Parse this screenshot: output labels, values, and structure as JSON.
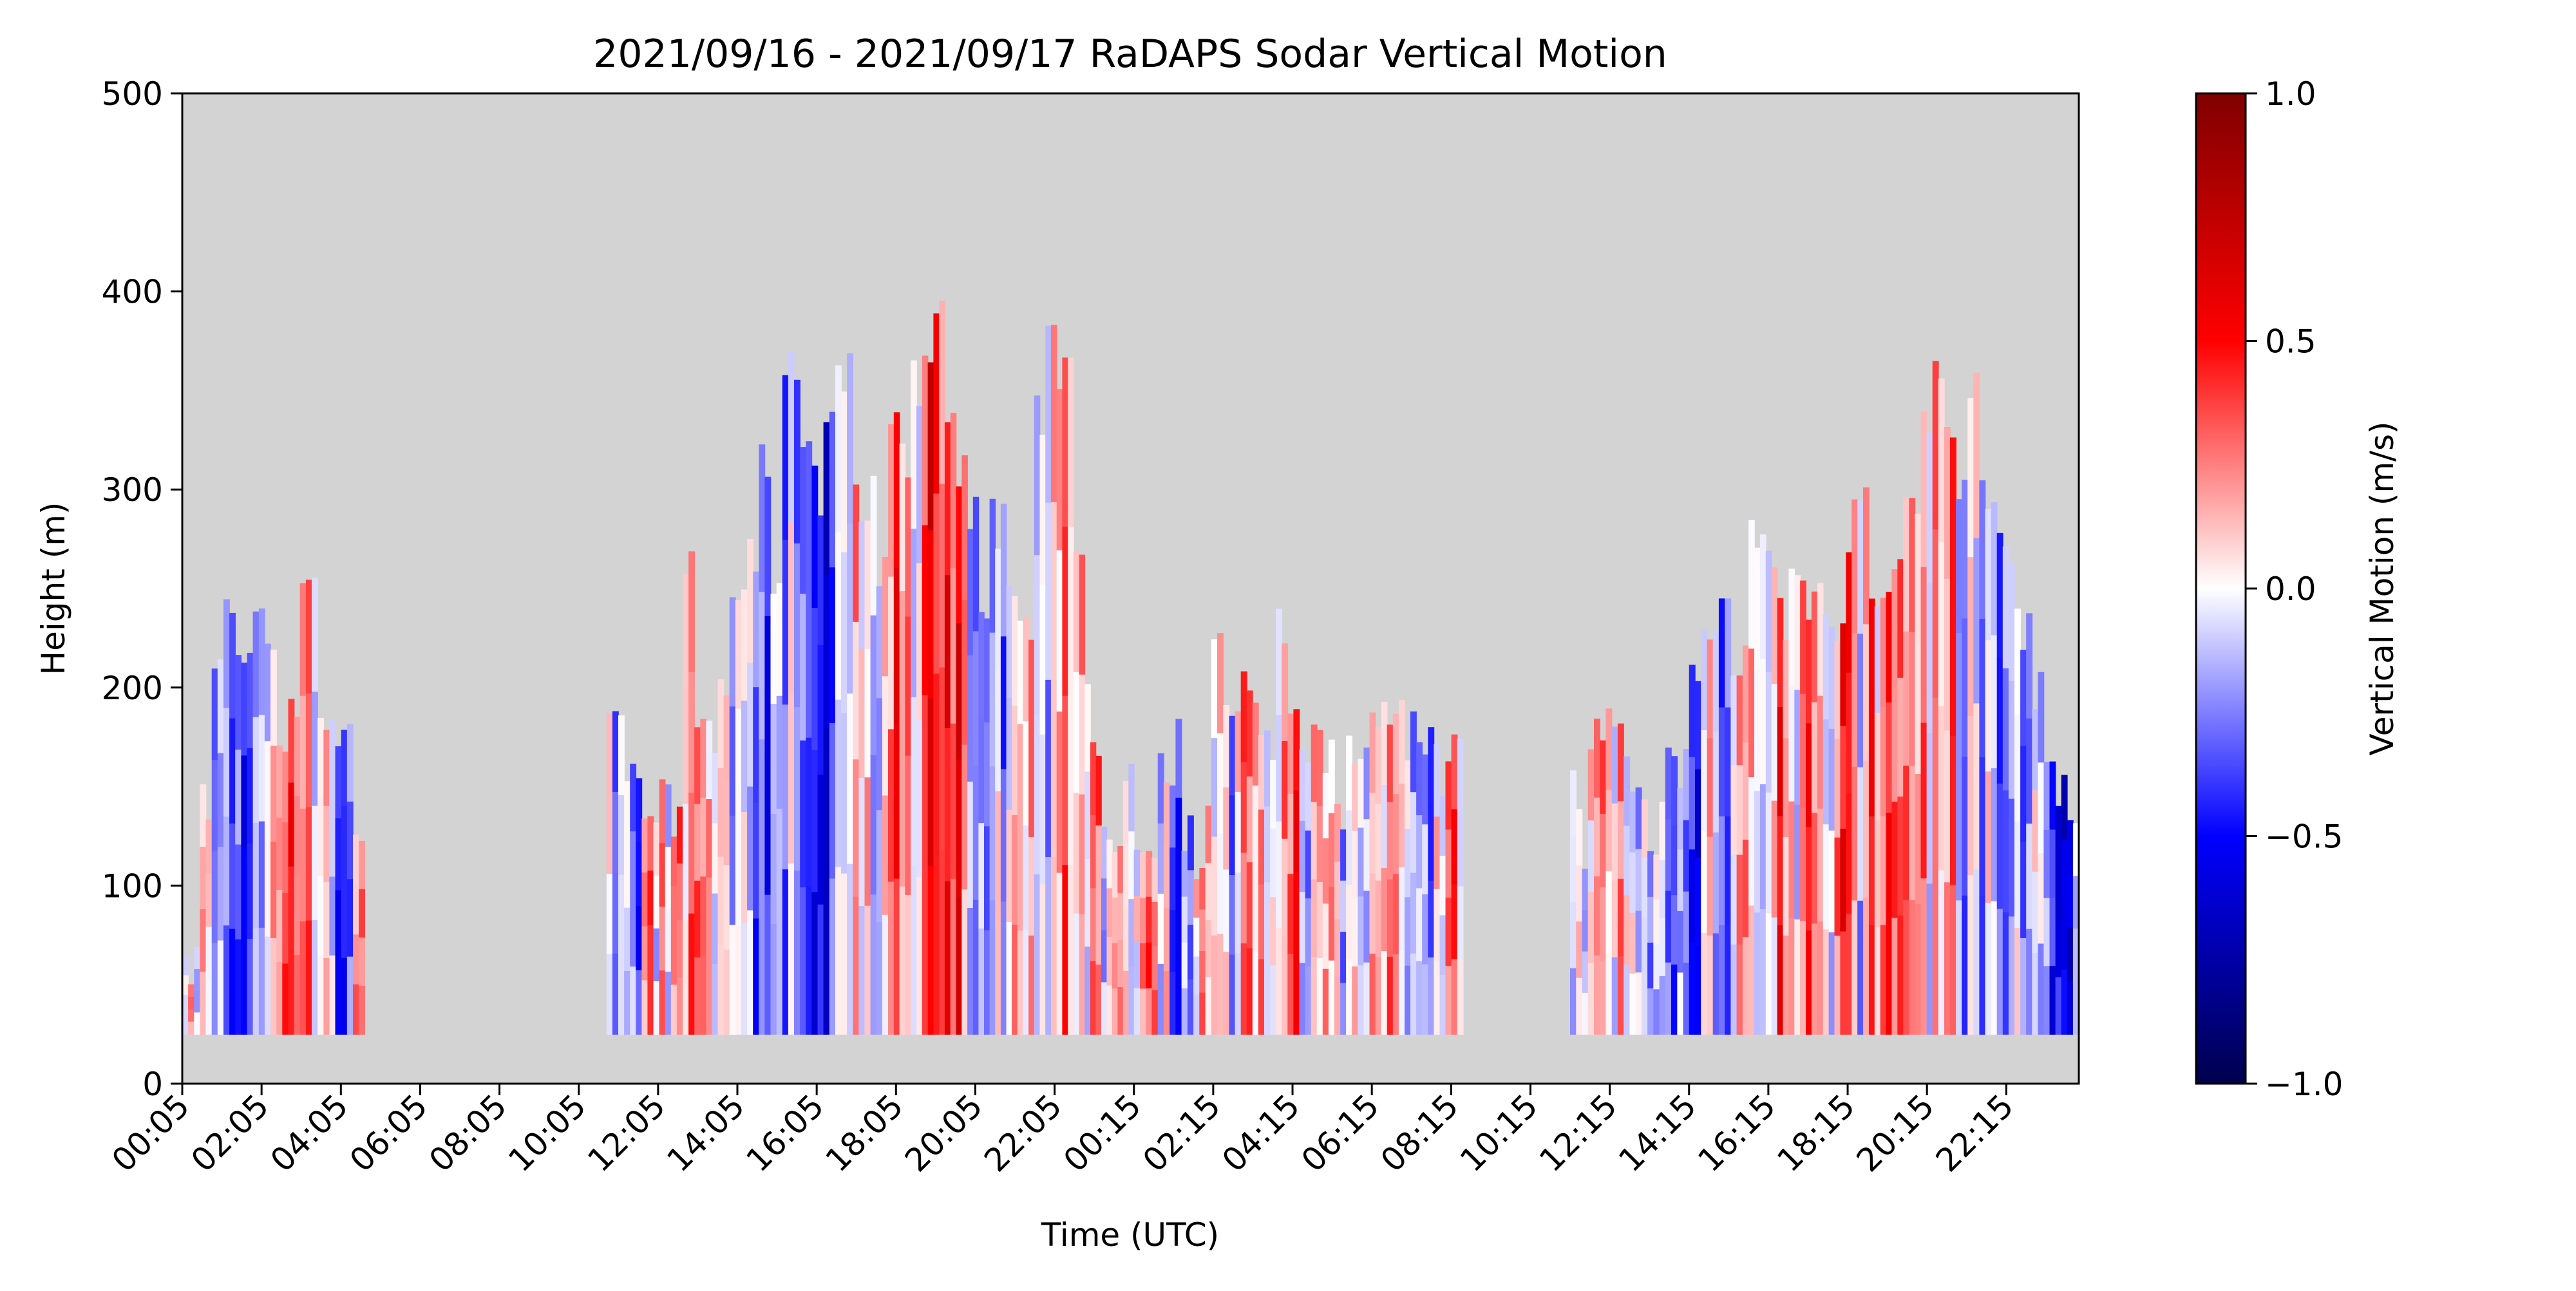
{
  "chart_data": {
    "type": "heatmap",
    "title": "2021/09/16 - 2021/09/17 RaDAPS Sodar Vertical Motion",
    "xlabel": "Time (UTC)",
    "ylabel": "Height (m)",
    "ylim": [
      0,
      500
    ],
    "y_ticks": [
      "0",
      "100",
      "200",
      "300",
      "400",
      "500"
    ],
    "x_ticks": [
      "00:05",
      "02:05",
      "04:05",
      "06:05",
      "08:05",
      "10:05",
      "12:05",
      "14:05",
      "16:05",
      "18:05",
      "20:05",
      "22:05",
      "00:15",
      "02:15",
      "04:15",
      "06:15",
      "08:15",
      "10:15",
      "12:15",
      "14:15",
      "16:15",
      "18:15",
      "20:15",
      "22:15"
    ],
    "x_range_hours": [
      0,
      47.83
    ],
    "missing_color": "#d3d3d3",
    "colorbar": {
      "label": "Vertical Motion (m/s)",
      "range": [
        -1.0,
        1.0
      ],
      "ticks": [
        "−1.0",
        "−0.5",
        "0.0",
        "0.5",
        "1.0"
      ],
      "colormap": "seismic"
    },
    "data_segments": [
      {
        "start_h": 0.0,
        "end_h": 4.6,
        "bottom_m": 25,
        "top_m": [
          60,
          140,
          200,
          235,
          220,
          235,
          210,
          180,
          200,
          250,
          190,
          175,
          190,
          130
        ],
        "bias": 0.0
      },
      {
        "start_h": 10.7,
        "end_h": 13.8,
        "bottom_m": 25,
        "top_m": [
          180,
          150,
          140,
          130,
          160,
          130,
          265,
          180,
          175,
          190
        ],
        "bias": 0.05
      },
      {
        "start_h": 13.8,
        "end_h": 17.8,
        "bottom_m": 25,
        "top_m": [
          235,
          270,
          310,
          250,
          370,
          330,
          300,
          340,
          355,
          290,
          295,
          260
        ],
        "bias": -0.15
      },
      {
        "start_h": 17.8,
        "end_h": 19.8,
        "bottom_m": 25,
        "top_m": [
          330,
          310,
          355,
          370,
          385,
          330,
          310
        ],
        "bias": 0.4
      },
      {
        "start_h": 19.8,
        "end_h": 21.2,
        "bottom_m": 25,
        "top_m": [
          290,
          240,
          310,
          280,
          240,
          230
        ],
        "bias": 0.05
      },
      {
        "start_h": 21.2,
        "end_h": 22.9,
        "bottom_m": 25,
        "top_m": [
          235,
          340,
          370,
          355,
          355,
          260,
          210
        ],
        "bias": 0.2
      },
      {
        "start_h": 22.9,
        "end_h": 24.0,
        "bottom_m": 25,
        "top_m": [
          160,
          130,
          120,
          150
        ],
        "bias": 0.0
      },
      {
        "start_h": 24.0,
        "end_h": 26.4,
        "bottom_m": 25,
        "top_m": [
          130,
          115,
          160,
          150,
          185,
          130,
          115,
          130,
          235,
          200
        ],
        "bias": 0.0
      },
      {
        "start_h": 26.4,
        "end_h": 32.3,
        "bottom_m": 25,
        "top_m": [
          175,
          200,
          190,
          175,
          235,
          175,
          160,
          175,
          160,
          140,
          175,
          160,
          175,
          190,
          185,
          175,
          160,
          175,
          160,
          175
        ],
        "bias": -0.05
      },
      {
        "start_h": 35.0,
        "end_h": 37.4,
        "bottom_m": 25,
        "top_m": [
          145,
          100,
          175,
          175,
          190,
          180,
          160,
          140,
          130,
          130,
          150
        ],
        "bias": -0.05
      },
      {
        "start_h": 37.4,
        "end_h": 39.5,
        "bottom_m": 25,
        "top_m": [
          175,
          160,
          200,
          220,
          230,
          235,
          220,
          235
        ],
        "bias": 0.0
      },
      {
        "start_h": 39.5,
        "end_h": 43.4,
        "bottom_m": 25,
        "top_m": [
          280,
          270,
          235,
          250,
          240,
          250,
          240,
          235,
          280,
          295,
          235,
          240,
          250
        ],
        "bias": 0.25
      },
      {
        "start_h": 43.4,
        "end_h": 47.83,
        "bottom_m": 25,
        "top_m": [
          300,
          330,
          355,
          330,
          310,
          350,
          300,
          280,
          250,
          230,
          200,
          160,
          150,
          125
        ],
        "bias": 0.0
      }
    ]
  }
}
